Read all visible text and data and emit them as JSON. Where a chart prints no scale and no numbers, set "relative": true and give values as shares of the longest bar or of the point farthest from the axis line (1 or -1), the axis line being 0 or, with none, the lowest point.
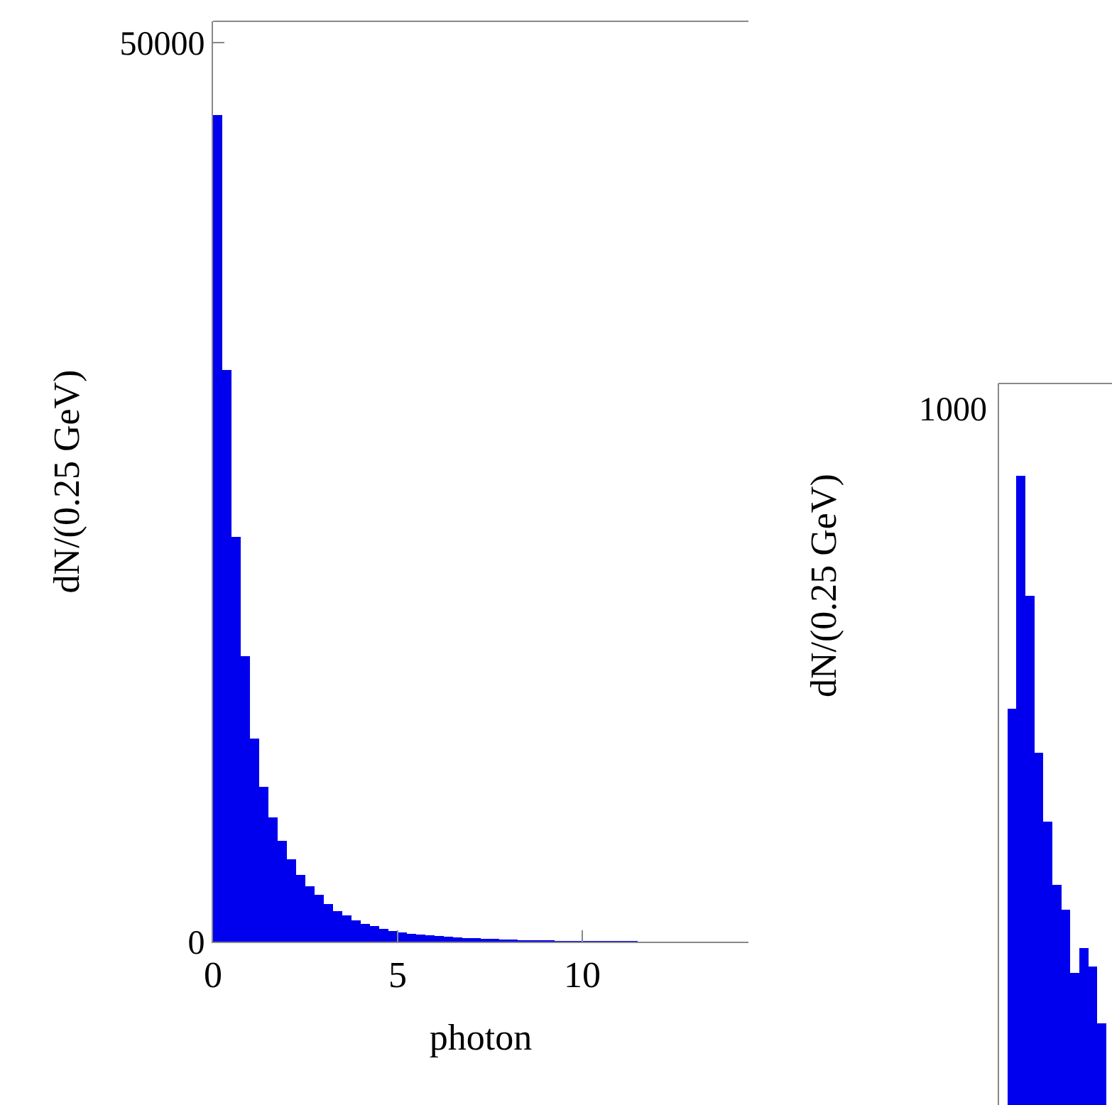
{
  "chart_data": [
    {
      "type": "histogram",
      "xlabel": "photon",
      "ylabel": "dN/(0.25 GeV)",
      "color": "#0000ee",
      "bins": [
        0,
        0.25,
        0.5,
        0.75,
        1,
        1.25,
        1.5,
        1.75,
        2,
        2.25,
        2.5,
        2.75,
        3,
        3.25,
        3.5,
        3.75,
        4,
        4.25,
        4.5,
        4.75,
        5,
        5.25,
        5.5,
        5.75,
        6,
        6.25,
        6.5,
        6.75,
        7,
        7.25,
        7.5,
        7.75,
        8,
        8.25,
        8.5,
        8.75,
        9,
        9.25,
        9.5,
        9.75,
        10,
        10.25,
        10.5,
        10.75,
        11,
        11.25,
        11.5
      ],
      "values": [
        46000,
        31800,
        22500,
        15900,
        11300,
        8600,
        6900,
        5600,
        4600,
        3700,
        3100,
        2600,
        2100,
        1700,
        1450,
        1200,
        1000,
        850,
        700,
        600,
        500,
        440,
        390,
        340,
        300,
        260,
        230,
        200,
        180,
        160,
        140,
        125,
        110,
        95,
        85,
        75,
        65,
        58,
        50,
        45,
        40,
        36,
        32,
        28,
        25,
        22
      ],
      "xlim": [
        0,
        14.5
      ],
      "ylim": [
        0,
        51200
      ],
      "xticks": [
        0,
        5,
        10
      ],
      "yticks": [
        0,
        50000
      ],
      "grid": false
    },
    {
      "type": "bar",
      "relative": true,
      "ylabel": "dN/(0.25 GeV)",
      "color": "#0000ee",
      "annotations": [
        "1000"
      ],
      "categories": [
        null,
        null,
        null,
        null,
        null,
        null,
        null,
        null,
        null,
        null,
        null
      ],
      "values": [
        0.63,
        1,
        0.81,
        0.56,
        0.45,
        0.35,
        0.31,
        0.21,
        0.25,
        0.22,
        0.13
      ],
      "grid": false
    }
  ]
}
